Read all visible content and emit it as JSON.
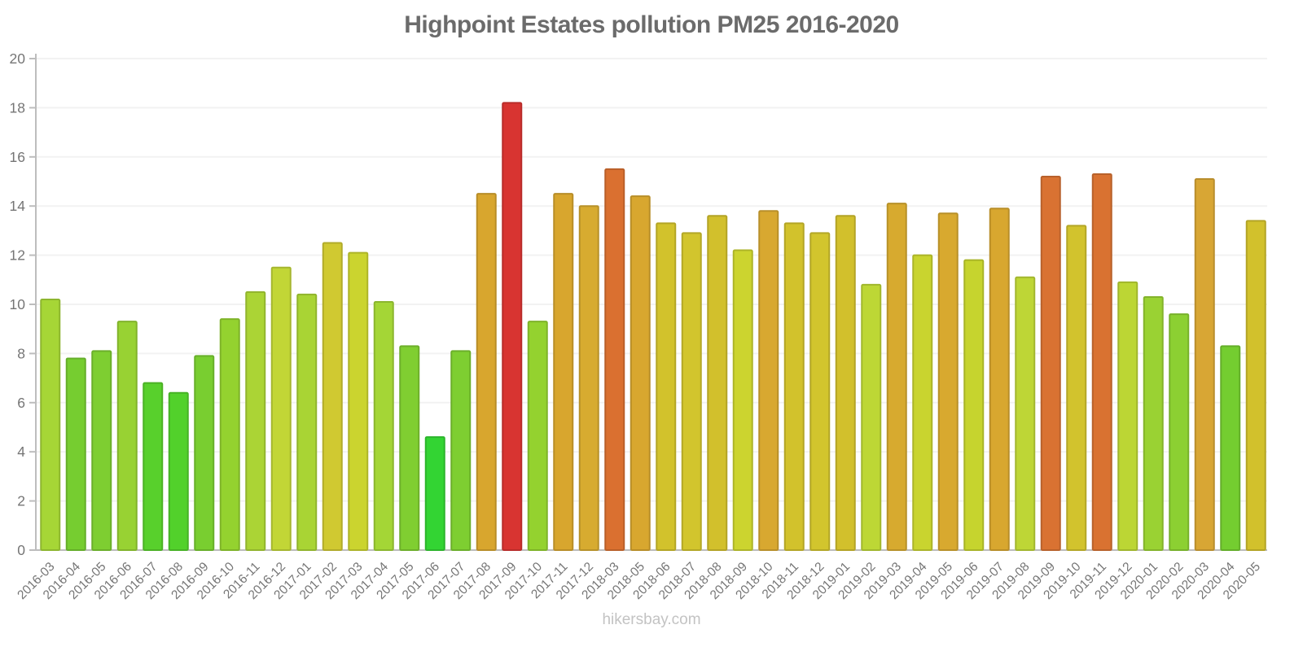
{
  "chart_data": {
    "type": "bar",
    "title": "Highpoint Estates pollution PM25 2016-2020",
    "xlabel": "",
    "ylabel": "",
    "legend": "none",
    "grid": "horizontal",
    "ylim": [
      0,
      20
    ],
    "yticks": [
      0,
      2,
      4,
      6,
      8,
      10,
      12,
      14,
      16,
      18,
      20
    ],
    "categories": [
      "2016-03",
      "2016-04",
      "2016-05",
      "2016-06",
      "2016-07",
      "2016-08",
      "2016-09",
      "2016-10",
      "2016-11",
      "2016-12",
      "2017-01",
      "2017-02",
      "2017-03",
      "2017-04",
      "2017-05",
      "2017-06",
      "2017-07",
      "2017-08",
      "2017-09",
      "2017-10",
      "2017-11",
      "2017-12",
      "2018-03",
      "2018-05",
      "2018-06",
      "2018-07",
      "2018-08",
      "2018-09",
      "2018-10",
      "2018-11",
      "2018-12",
      "2019-01",
      "2019-02",
      "2019-03",
      "2019-04",
      "2019-05",
      "2019-06",
      "2019-07",
      "2019-08",
      "2019-09",
      "2019-10",
      "2019-11",
      "2019-12",
      "2020-01",
      "2020-02",
      "2020-03",
      "2020-04",
      "2020-05"
    ],
    "values": [
      10.2,
      7.8,
      8.1,
      9.3,
      6.8,
      6.4,
      7.9,
      9.4,
      10.5,
      11.5,
      10.4,
      12.5,
      12.1,
      10.1,
      8.3,
      4.6,
      8.1,
      14.5,
      18.2,
      9.3,
      14.5,
      14.0,
      15.5,
      14.4,
      13.3,
      12.9,
      13.6,
      12.2,
      13.8,
      13.3,
      12.9,
      13.6,
      10.8,
      14.1,
      12.0,
      13.7,
      11.8,
      13.9,
      11.1,
      15.2,
      13.2,
      15.3,
      10.9,
      10.3,
      9.6,
      15.1,
      8.3,
      13.4
    ],
    "bar_colors": [
      "#a6d636",
      "#76cd30",
      "#7ece31",
      "#98d233",
      "#58d02c",
      "#52d12b",
      "#79ce30",
      "#94d22f",
      "#abd435",
      "#c2d636",
      "#a9d434",
      "#d0c931",
      "#cbd42f",
      "#a4d636",
      "#80ce31",
      "#33d433",
      "#7ece31",
      "#d8a62e",
      "#d83431",
      "#94d22f",
      "#d8a62e",
      "#d7ab30",
      "#da7030",
      "#d8a72f",
      "#d2c22c",
      "#d2c52d",
      "#d2c02c",
      "#ccd42f",
      "#d8a830",
      "#d2c22c",
      "#d2c52d",
      "#d2c02c",
      "#bdd735",
      "#d7aa2f",
      "#c9d42f",
      "#d8a92f",
      "#c6d42e",
      "#d8a72f",
      "#bed636",
      "#d97232",
      "#d2c32d",
      "#d97231",
      "#bcd634",
      "#9ad233",
      "#8cd032",
      "#d8a634",
      "#74cd30",
      "#d2c12c"
    ]
  },
  "footer": {
    "text": "hikersbay.com"
  },
  "colors": {
    "title": "#6b6b6b",
    "axis_line": "#bdbdbd",
    "tick_labels": "#757575",
    "gridline": "#f2f2f2",
    "footer_text": "#c3c3c3",
    "background": "#ffffff"
  }
}
